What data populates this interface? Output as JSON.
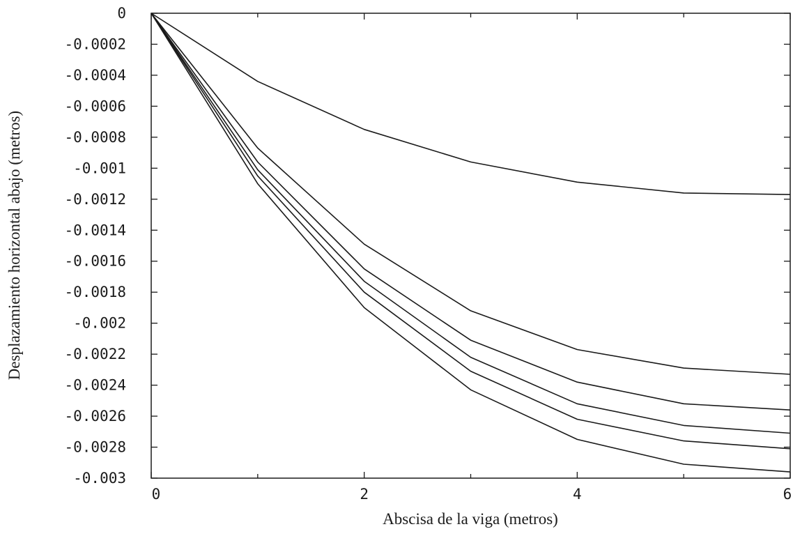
{
  "chart_data": {
    "type": "line",
    "title": "",
    "xlabel": "Abscisa de la viga (metros)",
    "ylabel": "Desplazamiento horizontal abajo (metros)",
    "xlim": [
      0,
      6
    ],
    "ylim": [
      -0.003,
      0
    ],
    "x_ticks": [
      0,
      2,
      4,
      6
    ],
    "x_minor_ticks": [
      1,
      3,
      5
    ],
    "x_tick_labels": [
      "0",
      "2",
      "4",
      "6"
    ],
    "y_ticks": [
      0,
      -0.0002,
      -0.0004,
      -0.0006,
      -0.0008,
      -0.001,
      -0.0012,
      -0.0014,
      -0.0016,
      -0.0018,
      -0.002,
      -0.0022,
      -0.0024,
      -0.0026,
      -0.0028,
      -0.003
    ],
    "y_tick_labels": [
      "0",
      "-0.0002",
      "-0.0004",
      "-0.0006",
      "-0.0008",
      "-0.001",
      "-0.0012",
      "-0.0014",
      "-0.0016",
      "-0.0018",
      "-0.002",
      "-0.0022",
      "-0.0024",
      "-0.0026",
      "-0.0028",
      "-0.003"
    ],
    "grid": false,
    "legend": "none",
    "line_color": "#1a1a1a",
    "x": [
      0,
      1,
      2,
      3,
      4,
      5,
      6
    ],
    "series": [
      {
        "values": [
          0,
          -0.00044,
          -0.00075,
          -0.00096,
          -0.00109,
          -0.00116,
          -0.00117
        ]
      },
      {
        "values": [
          0,
          -0.00087,
          -0.00149,
          -0.00192,
          -0.00217,
          -0.00229,
          -0.00233
        ]
      },
      {
        "values": [
          0,
          -0.00096,
          -0.00165,
          -0.00211,
          -0.00238,
          -0.00252,
          -0.00256
        ]
      },
      {
        "values": [
          0,
          -0.00101,
          -0.00173,
          -0.00222,
          -0.00252,
          -0.00266,
          -0.00271
        ]
      },
      {
        "values": [
          0,
          -0.00105,
          -0.0018,
          -0.00231,
          -0.00262,
          -0.00276,
          -0.00281
        ]
      },
      {
        "values": [
          0,
          -0.0011,
          -0.0019,
          -0.00243,
          -0.00275,
          -0.00291,
          -0.00296
        ]
      }
    ]
  }
}
